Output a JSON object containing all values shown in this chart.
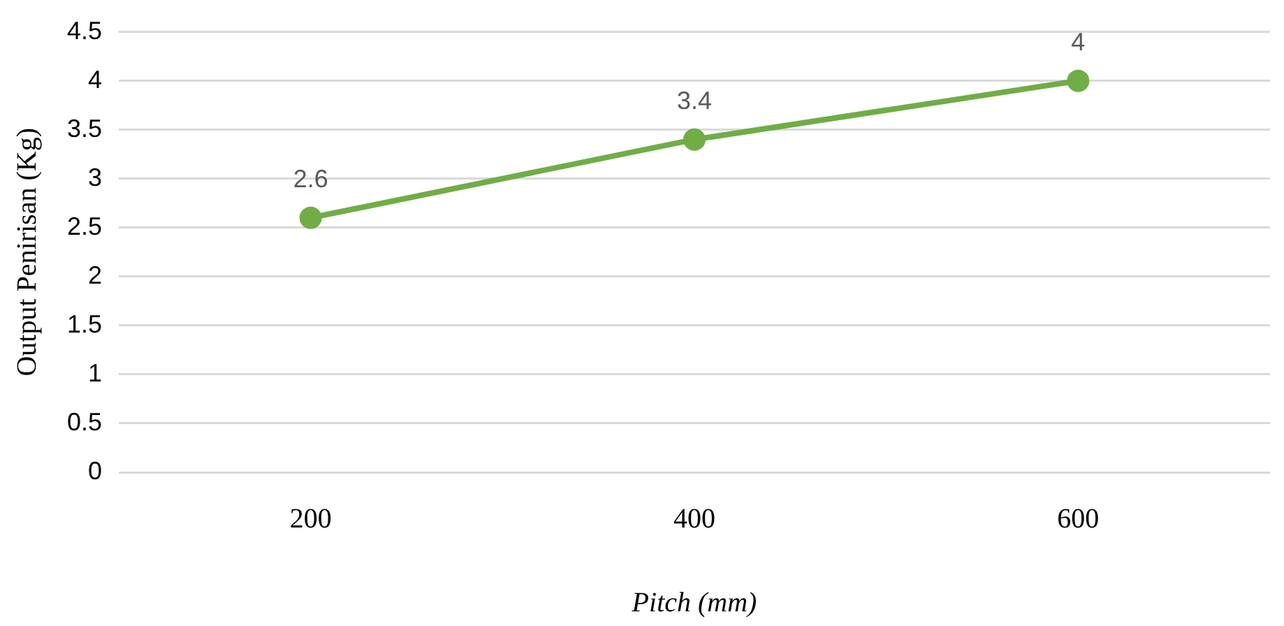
{
  "chart_data": {
    "type": "line",
    "xlabel": "Pitch (mm)",
    "ylabel": "Output Penirisan (Kg)",
    "categories": [
      "200",
      "400",
      "600"
    ],
    "series": [
      {
        "color": "#70ad47",
        "values": [
          2.6,
          3.4,
          4
        ]
      }
    ],
    "ylim": [
      0,
      4.5
    ],
    "yticks": [
      0,
      0.5,
      1,
      1.5,
      2,
      2.5,
      3,
      3.5,
      4,
      4.5
    ],
    "grid": "y",
    "legend": false,
    "marker": "circle",
    "line_style": "solid",
    "data_labels": true
  }
}
